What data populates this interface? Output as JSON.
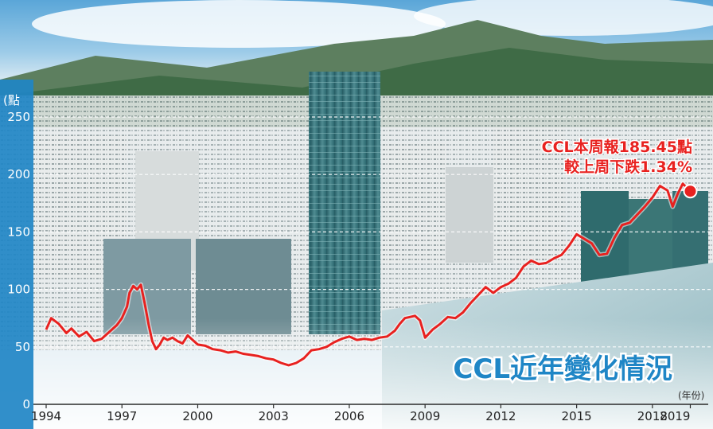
{
  "chart_data": {
    "type": "line",
    "title": "CCL近年變化情況",
    "ylabel": "(點",
    "xlabel": "(年份)",
    "ylim": [
      0,
      250
    ],
    "yticks": [
      0,
      50,
      100,
      150,
      200,
      250
    ],
    "xlim": [
      1994,
      2019.8
    ],
    "xtick_labels": [
      "1994",
      "1997",
      "2000",
      "2003",
      "2006",
      "2009",
      "2012",
      "2015",
      "2018",
      "2019"
    ],
    "xtick_values": [
      1994,
      1997,
      2000,
      2003,
      2006,
      2009,
      2012,
      2015,
      2018,
      2019.5
    ],
    "grid": "dashed horizontal at 50,100,150,200,250",
    "series": [
      {
        "color": "#e8211f",
        "x": [
          1994.0,
          1994.2,
          1994.5,
          1994.8,
          1995.0,
          1995.3,
          1995.6,
          1995.9,
          1996.2,
          1996.5,
          1996.8,
          1997.0,
          1997.2,
          1997.3,
          1997.45,
          1997.6,
          1997.75,
          1997.9,
          1998.05,
          1998.2,
          1998.35,
          1998.5,
          1998.65,
          1998.8,
          1999.0,
          1999.2,
          1999.4,
          1999.6,
          1999.8,
          2000.0,
          2000.3,
          2000.6,
          2000.9,
          2001.2,
          2001.5,
          2001.8,
          2002.1,
          2002.4,
          2002.7,
          2003.0,
          2003.3,
          2003.6,
          2003.9,
          2004.2,
          2004.5,
          2004.8,
          2005.1,
          2005.4,
          2005.7,
          2006.0,
          2006.3,
          2006.6,
          2006.9,
          2007.2,
          2007.5,
          2007.8,
          2008.0,
          2008.2,
          2008.4,
          2008.6,
          2008.8,
          2009.0,
          2009.3,
          2009.6,
          2009.9,
          2010.2,
          2010.5,
          2010.8,
          2011.1,
          2011.4,
          2011.7,
          2012.0,
          2012.3,
          2012.6,
          2012.9,
          2013.2,
          2013.5,
          2013.8,
          2014.1,
          2014.4,
          2014.7,
          2015.0,
          2015.3,
          2015.6,
          2015.9,
          2016.2,
          2016.5,
          2016.8,
          2017.1,
          2017.4,
          2017.7,
          2018.0,
          2018.3,
          2018.6,
          2018.8,
          2019.0,
          2019.2,
          2019.5
        ],
        "y": [
          65,
          75,
          70,
          62,
          66,
          59,
          63,
          55,
          57,
          63,
          69,
          75,
          85,
          97,
          103,
          100,
          104,
          88,
          70,
          55,
          48,
          52,
          58,
          56,
          58,
          55,
          53,
          60,
          56,
          52,
          51,
          48,
          47,
          45,
          46,
          44,
          43,
          42,
          40,
          39,
          36,
          34,
          36,
          40,
          47,
          48,
          50,
          54,
          57,
          59,
          56,
          57,
          56,
          58,
          59,
          64,
          70,
          75,
          76,
          77,
          73,
          58,
          65,
          70,
          76,
          75,
          80,
          88,
          95,
          102,
          97,
          102,
          105,
          110,
          120,
          125,
          122,
          123,
          127,
          130,
          138,
          148,
          144,
          140,
          130,
          131,
          145,
          156,
          158,
          165,
          172,
          180,
          190,
          186,
          172,
          183,
          192,
          185.45
        ]
      }
    ],
    "annotations": [
      "CCL本周報185.45點",
      "較上周下跌1.34%"
    ]
  }
}
